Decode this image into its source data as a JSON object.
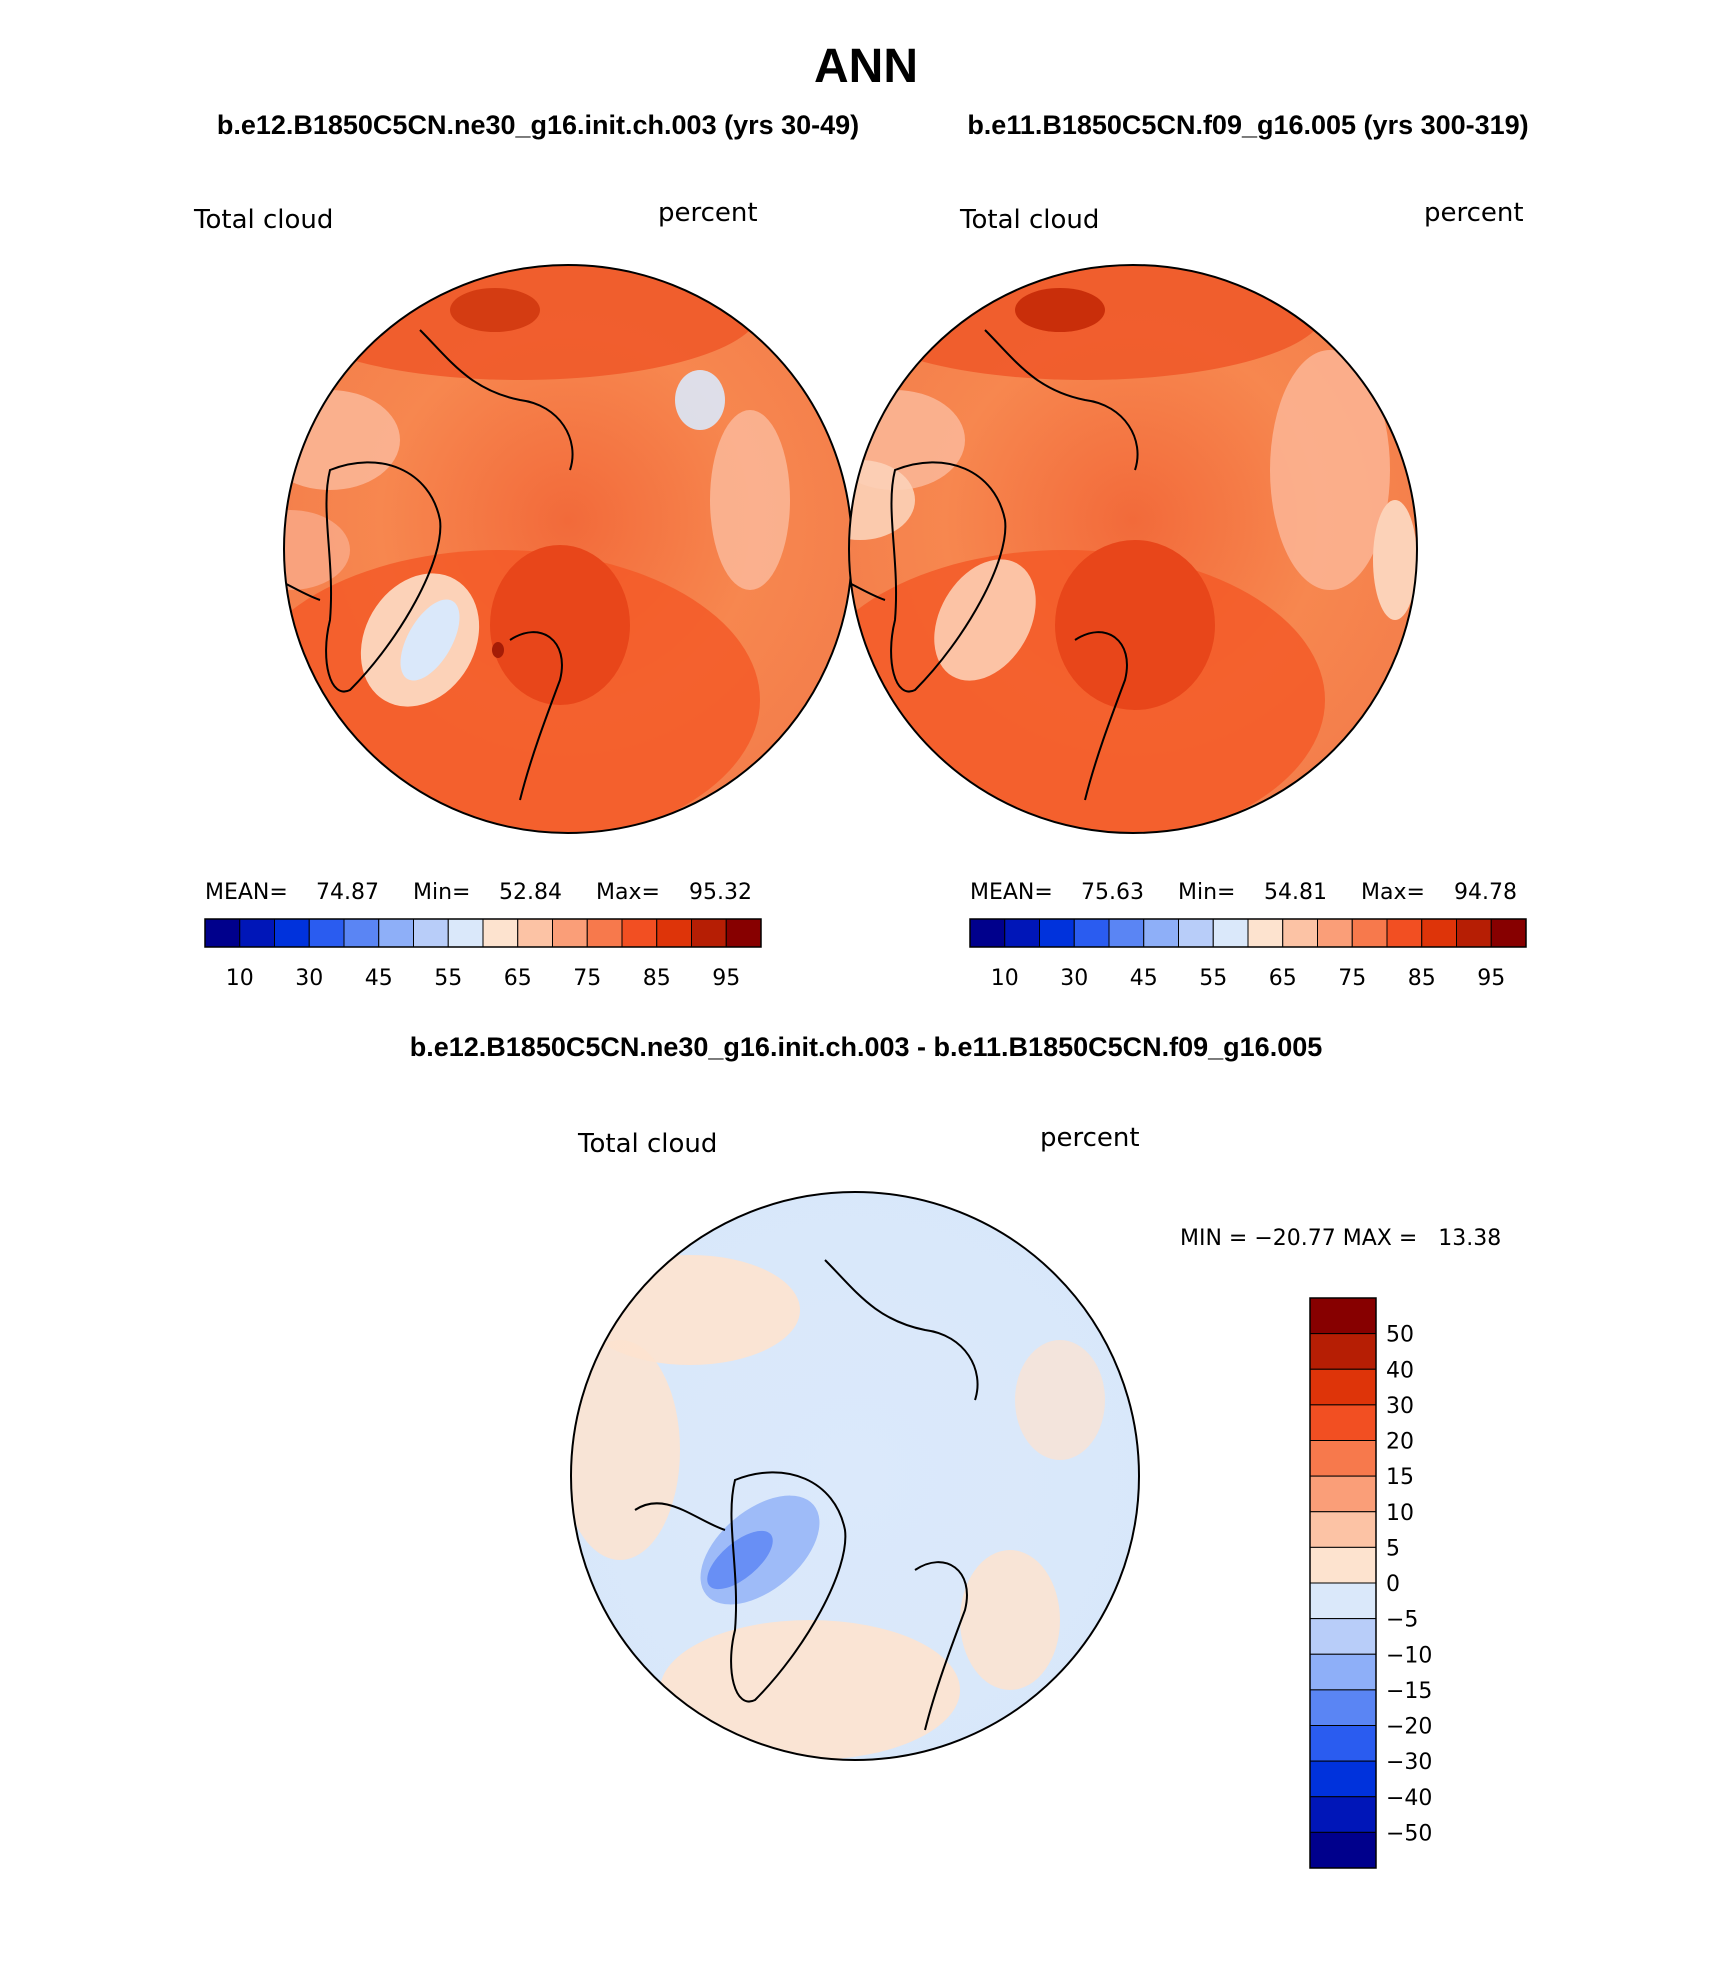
{
  "figure": {
    "season": "ANN",
    "left_case": "b.e12.B1850C5CN.ne30_g16.init.ch.003 (yrs 30-49)",
    "right_case": "b.e11.B1850C5CN.f09_g16.005 (yrs 300-319)",
    "diff_title": "b.e12.B1850C5CN.ne30_g16.init.ch.003 - b.e11.B1850C5CN.f09_g16.005"
  },
  "panels": [
    {
      "variable": "Total cloud",
      "units": "percent",
      "stats": {
        "mean_label": "MEAN=",
        "mean": "74.87",
        "min_label": "Min=",
        "min": "52.84",
        "max_label": "Max=",
        "max": "95.32"
      }
    },
    {
      "variable": "Total cloud",
      "units": "percent",
      "stats": {
        "mean_label": "MEAN=",
        "mean": "75.63",
        "min_label": "Min=",
        "min": "54.81",
        "max_label": "Max=",
        "max": "94.78"
      }
    }
  ],
  "diff_panel": {
    "variable": "Total cloud",
    "units": "percent",
    "stats_text": "MIN = −20.77 MAX =   13.38"
  },
  "colorbar_abs": {
    "colors": [
      "#00008c",
      "#0016b8",
      "#0032dc",
      "#2a5cf0",
      "#5a85f4",
      "#8eaff8",
      "#b8cdf9",
      "#dae8fa",
      "#fde3cf",
      "#fcc3a5",
      "#fa9e78",
      "#f7794c",
      "#f24f22",
      "#de3409",
      "#b61e04",
      "#870000"
    ],
    "tick_labels": [
      "10",
      "30",
      "45",
      "55",
      "65",
      "75",
      "85",
      "95"
    ]
  },
  "colorbar_diff": {
    "colors": [
      "#870000",
      "#b61e04",
      "#de3409",
      "#f24f22",
      "#f7794c",
      "#fa9e78",
      "#fcc3a5",
      "#fde3cf",
      "#dae8fa",
      "#b8cdf9",
      "#8eaff8",
      "#5a85f4",
      "#2a5cf0",
      "#0032dc",
      "#0016b8",
      "#00008c"
    ],
    "tick_labels": [
      "50",
      "40",
      "30",
      "20",
      "15",
      "10",
      "5",
      "0",
      "−5",
      "−10",
      "−15",
      "−20",
      "−30",
      "−40",
      "−50"
    ]
  }
}
